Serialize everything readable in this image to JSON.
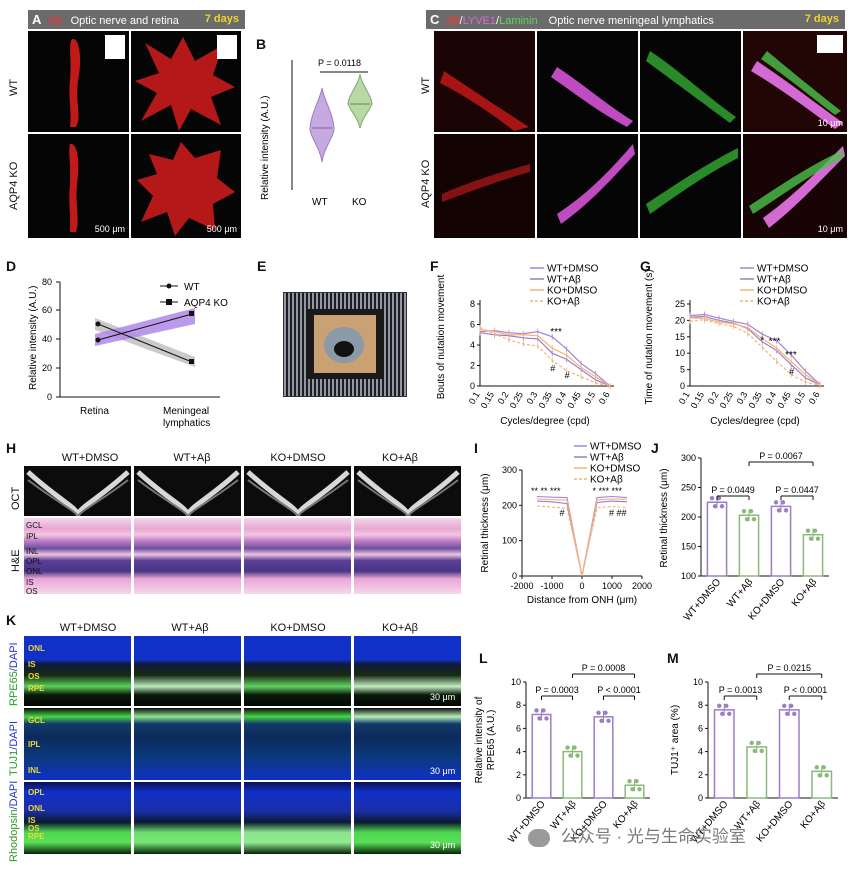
{
  "panelA": {
    "letter": "A",
    "header_red": "Aβ",
    "header_text": "Optic nerve and retina",
    "days": "7 days",
    "row1": "WT",
    "row2": "AQP4 KO",
    "scale1": "500 μm",
    "scale2": "500 μm"
  },
  "panelB": {
    "letter": "B",
    "ylabel": "Relative intensity (A.U.)",
    "pvalue": "P = 0.0118",
    "cat1": "WT",
    "cat2": "KO"
  },
  "panelC": {
    "letter": "C",
    "h_ab": "Aβ",
    "h_slash1": "/",
    "h_lyve": "LYVE1",
    "h_slash2": "/",
    "h_lam": "Laminin",
    "header_text": "Optic nerve meningeal lymphatics",
    "days": "7 days",
    "row1": "WT",
    "row2": "AQP4 KO",
    "scale1": "10 μm",
    "scale2": "10 μm"
  },
  "panelD": {
    "letter": "D",
    "ylabel": "Relative intensity (A.U.)",
    "legend_wt": "WT",
    "legend_ko": "AQP4 KO",
    "x1": "Retina",
    "x2a": "Meningeal",
    "x2b": "lymphatics",
    "ticks": [
      "0",
      "20",
      "40",
      "60",
      "80"
    ]
  },
  "panelE": {
    "letter": "E"
  },
  "panelF": {
    "letter": "F",
    "ylabel": "Bouts of nutation movement",
    "xlabel": "Cycles/degree (cpd)",
    "yticks": [
      "0",
      "2",
      "4",
      "6",
      "8"
    ],
    "xticks": [
      "0.1",
      "0.15",
      "0.2",
      "0.25",
      "0.3",
      "0.35",
      "0.4",
      "0.45",
      "0.5",
      "0.6"
    ],
    "legend": [
      "WT+DMSO",
      "WT+Aβ",
      "KO+DMSO",
      "KO+Aβ"
    ],
    "sig1": "***",
    "sig2": "#",
    "sig3": "#"
  },
  "panelG": {
    "letter": "G",
    "ylabel": "Time of nutation movement (s)",
    "xlabel": "Cycles/degree (cpd)",
    "yticks": [
      "0",
      "5",
      "10",
      "15",
      "20",
      "25"
    ],
    "xticks": [
      "0.1",
      "0.15",
      "0.2",
      "0.25",
      "0.3",
      "0.35",
      "0.4",
      "0.45",
      "0.5",
      "0.6"
    ],
    "legend": [
      "WT+DMSO",
      "WT+Aβ",
      "KO+DMSO",
      "KO+Aβ"
    ],
    "sig1": "*",
    "sig2": "***",
    "sig3": "***",
    "sig4": "#"
  },
  "panelH": {
    "letter": "H",
    "cols": [
      "WT+DMSO",
      "WT+Aβ",
      "KO+DMSO",
      "KO+Aβ"
    ],
    "row1": "OCT",
    "row2": "H&E",
    "layers": [
      "GCL",
      "IPL",
      "INL",
      "OPL",
      "ONL",
      "IS",
      "OS"
    ]
  },
  "panelI": {
    "letter": "I",
    "ylabel": "Retinal thickness (μm)",
    "xlabel": "Distance from ONH (μm)",
    "yticks": [
      "0",
      "100",
      "200",
      "300"
    ],
    "xticks": [
      "-2000",
      "-1000",
      "0",
      "1000",
      "2000"
    ],
    "legend": [
      "WT+DMSO",
      "WT+Aβ",
      "KO+DMSO",
      "KO+Aβ"
    ],
    "sigL": "** ** ***",
    "sigL2": "#",
    "sigR": "* *** ***",
    "sigR2": "#  ##"
  },
  "panelJ": {
    "letter": "J",
    "ylabel": "Retinal thickness (μm)",
    "yticks": [
      "100",
      "150",
      "200",
      "250",
      "300"
    ],
    "cats": [
      "WT+DMSO",
      "WT+Aβ",
      "KO+DMSO",
      "KO+Aβ"
    ],
    "p1": "P = 0.0449",
    "p2": "P = 0.0447",
    "p3": "P = 0.0067"
  },
  "panelK": {
    "letter": "K",
    "cols": [
      "WT+DMSO",
      "WT+Aβ",
      "KO+DMSO",
      "KO+Aβ"
    ],
    "row1_g": "RPE65",
    "row1_b": "/DAPI",
    "row2_g": "TUJ1",
    "row2_b": "/DAPI",
    "row3_g": "Rhodopsin",
    "row3_b": "/DAPI",
    "layers1": [
      "ONL",
      "IS",
      "OS",
      "RPE"
    ],
    "layers2": [
      "GCL",
      "IPL",
      "INL"
    ],
    "layers3": [
      "OPL",
      "ONL",
      "IS",
      "OS",
      "RPE"
    ],
    "scale": "30 μm"
  },
  "panelL": {
    "letter": "L",
    "ylabel1": "Relative intensity of",
    "ylabel2": "RPE65 (A.U.)",
    "yticks": [
      "0",
      "2",
      "4",
      "6",
      "8",
      "10"
    ],
    "cats": [
      "WT+DMSO",
      "WT+Aβ",
      "KO+DMSO",
      "KO+Aβ"
    ],
    "p1": "P = 0.0003",
    "p2": "P < 0.0001",
    "p3": "P = 0.0008"
  },
  "panelM": {
    "letter": "M",
    "ylabel": "TUJ1⁺ area (%)",
    "yticks": [
      "0",
      "2",
      "4",
      "6",
      "8",
      "10"
    ],
    "cats": [
      "WT+DMSO",
      "WT+Aβ",
      "KO+DMSO",
      "KO+Aβ"
    ],
    "p1": "P = 0.0013",
    "p2": "P < 0.0001",
    "p3": "P = 0.0215"
  },
  "watermark": "公众号 · 光与生命实验室",
  "colors": {
    "purple": "#9b7fc4",
    "green": "#8ab97a",
    "orange": "#f4b277",
    "lavender": "#a585d8"
  },
  "chart_data": [
    {
      "panel": "B",
      "type": "violin",
      "categories": [
        "WT",
        "KO"
      ],
      "values": [
        30,
        44
      ],
      "ylabel": "Relative intensity (A.U.)"
    },
    {
      "panel": "D",
      "type": "line",
      "categories": [
        "Retina",
        "Meningeal lymphatics"
      ],
      "series": [
        {
          "name": "WT",
          "values": [
            52,
            25
          ]
        },
        {
          "name": "AQP4 KO",
          "values": [
            34,
            60
          ]
        }
      ],
      "ylim": [
        0,
        80
      ],
      "ylabel": "Relative intensity (A.U.)"
    },
    {
      "panel": "F",
      "type": "line",
      "categories": [
        "0.1",
        "0.15",
        "0.2",
        "0.25",
        "0.3",
        "0.35",
        "0.4",
        "0.45",
        "0.5",
        "0.6"
      ],
      "series": [
        {
          "name": "WT+DMSO",
          "values": [
            5.3,
            5.4,
            5.2,
            5.1,
            5.3,
            4.8,
            3.6,
            2.2,
            1.2,
            0
          ]
        },
        {
          "name": "WT+Aβ",
          "values": [
            5.2,
            5.0,
            4.9,
            4.7,
            4.6,
            3.2,
            2.6,
            1.6,
            0.6,
            0
          ]
        },
        {
          "name": "KO+DMSO",
          "values": [
            5.5,
            5.3,
            5.0,
            5.0,
            4.9,
            3.7,
            3.0,
            1.8,
            0.9,
            0
          ]
        },
        {
          "name": "KO+Aβ",
          "values": [
            5.7,
            5.1,
            4.5,
            4.1,
            3.9,
            2.5,
            1.5,
            0.9,
            0.3,
            0
          ]
        }
      ],
      "ylim": [
        0,
        8
      ],
      "ylabel": "Bouts of nutation movement",
      "xlabel": "Cycles/degree (cpd)"
    },
    {
      "panel": "G",
      "type": "line",
      "categories": [
        "0.1",
        "0.15",
        "0.2",
        "0.25",
        "0.3",
        "0.35",
        "0.4",
        "0.45",
        "0.5",
        "0.6"
      ],
      "series": [
        {
          "name": "WT+DMSO",
          "values": [
            21.5,
            21.8,
            20.7,
            19.7,
            18.8,
            15.8,
            13.8,
            9.5,
            4.5,
            0.5
          ]
        },
        {
          "name": "WT+Aβ",
          "values": [
            21.0,
            21.2,
            20.0,
            19.2,
            17.5,
            13.5,
            10.8,
            6.5,
            2.5,
            0.3
          ]
        },
        {
          "name": "KO+DMSO",
          "values": [
            20.8,
            20.6,
            19.5,
            19.0,
            17.8,
            14.5,
            11.5,
            7.5,
            3.5,
            0.3
          ]
        },
        {
          "name": "KO+Aβ",
          "values": [
            19.8,
            20.2,
            19.0,
            18.2,
            16.0,
            11.8,
            7.5,
            3.5,
            1.2,
            0.2
          ]
        }
      ],
      "ylim": [
        0,
        25
      ],
      "ylabel": "Time of nutation movement (s)",
      "xlabel": "Cycles/degree (cpd)"
    },
    {
      "panel": "I",
      "type": "line",
      "x": [
        -1500,
        -1000,
        -500,
        0,
        500,
        1000,
        1500
      ],
      "series": [
        {
          "name": "WT+DMSO",
          "values": [
            225,
            223,
            222,
            0,
            222,
            225,
            222
          ]
        },
        {
          "name": "WT+Aβ",
          "values": [
            212,
            210,
            205,
            0,
            208,
            212,
            210
          ]
        },
        {
          "name": "KO+DMSO",
          "values": [
            218,
            216,
            215,
            0,
            215,
            218,
            217
          ]
        },
        {
          "name": "KO+Aβ",
          "values": [
            198,
            195,
            192,
            0,
            193,
            197,
            194
          ]
        }
      ],
      "ylim": [
        0,
        300
      ],
      "xlim": [
        -2000,
        2000
      ],
      "ylabel": "Retinal thickness (μm)",
      "xlabel": "Distance from ONH (μm)"
    },
    {
      "panel": "J",
      "type": "bar",
      "categories": [
        "WT+DMSO",
        "WT+Aβ",
        "KO+DMSO",
        "KO+Aβ"
      ],
      "values": [
        225,
        203,
        218,
        170
      ],
      "ylim": [
        100,
        300
      ],
      "ylabel": "Retinal thickness (μm)"
    },
    {
      "panel": "L",
      "type": "bar",
      "categories": [
        "WT+DMSO",
        "WT+Aβ",
        "KO+DMSO",
        "KO+Aβ"
      ],
      "values": [
        7.2,
        4.0,
        7.0,
        1.1
      ],
      "ylim": [
        0,
        10
      ],
      "ylabel": "Relative intensity of RPE65 (A.U.)"
    },
    {
      "panel": "M",
      "type": "bar",
      "categories": [
        "WT+DMSO",
        "WT+Aβ",
        "KO+DMSO",
        "KO+Aβ"
      ],
      "values": [
        7.6,
        4.4,
        7.6,
        2.3
      ],
      "ylim": [
        0,
        10
      ],
      "ylabel": "TUJ1⁺ area (%)"
    }
  ]
}
